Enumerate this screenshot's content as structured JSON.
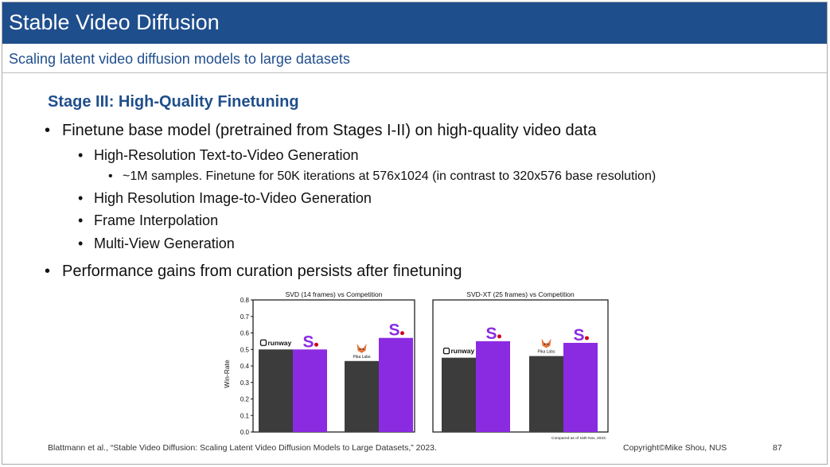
{
  "slide": {
    "title": "Stable Video Diffusion",
    "subtitle": "Scaling latent video diffusion models to large datasets",
    "stage_title": "Stage III: High-Quality Finetuning",
    "bullets": [
      "Finetune base model (pretrained from Stages I-II) on high-quality video data",
      "High-Resolution Text-to-Video Generation",
      "~1M samples. Finetune for 50K iterations at 576x1024 (in contrast to 320x576 base resolution)",
      "High Resolution Image-to-Video Generation",
      "Frame Interpolation",
      "Multi-View Generation",
      "Performance gains from curation persists after finetuning"
    ],
    "bullet_symbol": "•",
    "footer": {
      "citation": "Blattmann et al., “Stable Video Diffusion: Scaling Latent Video Diffusion Models to Large Datasets,” 2023.",
      "copyright": "Copyright©Mike Shou, NUS",
      "page": "87"
    }
  },
  "logos": {
    "runway_text": "runway",
    "pika_text": "Pika Labs",
    "stability_text": "S.",
    "runway_icon": "runway-logo-icon",
    "pika_icon": "pika-fox-icon"
  },
  "chart_data": [
    {
      "type": "bar",
      "title": "SVD (14 frames) vs Competition",
      "ylabel": "Win-Rate",
      "xlabel": "",
      "ylim": [
        0,
        0.8
      ],
      "yticks": [
        "0.0",
        "0.1",
        "0.2",
        "0.3",
        "0.4",
        "0.5",
        "0.6",
        "0.7",
        "0.8"
      ],
      "groups": [
        {
          "competitor": "runway",
          "values": [
            0.5,
            0.5
          ]
        },
        {
          "competitor": "Pika Labs",
          "values": [
            0.43,
            0.57
          ]
        }
      ],
      "series_colors": [
        "#3c3c3c",
        "#8a2be2"
      ],
      "grid": false
    },
    {
      "type": "bar",
      "title": "SVD-XT (25 frames) vs Competition",
      "ylabel": "",
      "xlabel": "",
      "ylim": [
        0,
        0.8
      ],
      "groups": [
        {
          "competitor": "runway",
          "values": [
            0.45,
            0.55
          ]
        },
        {
          "competitor": "Pika Labs",
          "values": [
            0.46,
            0.54
          ]
        }
      ],
      "series_colors": [
        "#3c3c3c",
        "#8a2be2"
      ],
      "note": "Compared as of 15th Nov, 2023.",
      "grid": false
    }
  ],
  "colors": {
    "title_bar": "#1f4e8c",
    "accent_text": "#1f4e8c",
    "competitor_bar": "#3c3c3c",
    "svd_bar": "#8a2be2",
    "stability_dot": "#d0021b"
  }
}
